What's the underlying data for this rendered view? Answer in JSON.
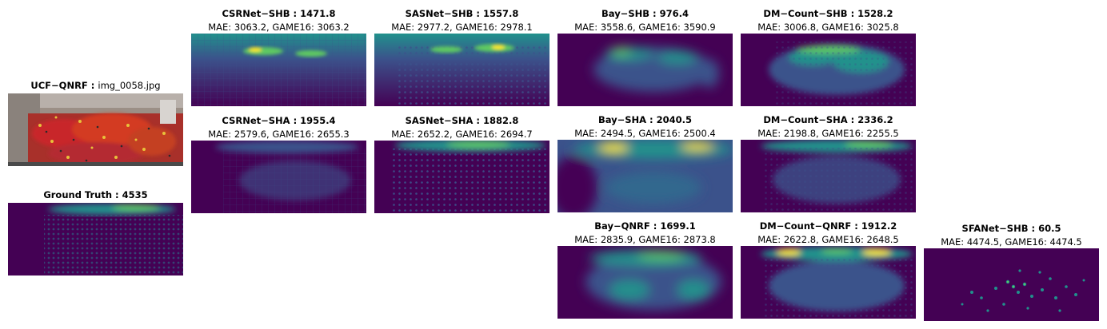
{
  "colors": {
    "viridis_dark": "#440154",
    "viridis_mid": "#3b528b",
    "viridis_teal": "#21918c",
    "viridis_green": "#5ec962",
    "viridis_yellow": "#fde725"
  },
  "source": {
    "dataset": "UCF−QNRF :",
    "filename": "img_0058.jpg"
  },
  "ground_truth": {
    "title": "Ground Truth : 4535"
  },
  "panels": {
    "csrnet_shb": {
      "title": "CSRNet−SHB : 1471.8",
      "metrics": "MAE: 3063.2, GAME16: 3063.2"
    },
    "csrnet_sha": {
      "title": "CSRNet−SHA : 1955.4",
      "metrics": "MAE: 2579.6, GAME16: 2655.3"
    },
    "sasnet_shb": {
      "title": "SASNet−SHB : 1557.8",
      "metrics": "MAE: 2977.2, GAME16: 2978.1"
    },
    "sasnet_sha": {
      "title": "SASNet−SHA : 1882.8",
      "metrics": "MAE: 2652.2, GAME16: 2694.7"
    },
    "bay_shb": {
      "title": "Bay−SHB : 976.4",
      "metrics": "MAE: 3558.6, GAME16: 3590.9"
    },
    "bay_sha": {
      "title": "Bay−SHA : 2040.5",
      "metrics": "MAE: 2494.5, GAME16: 2500.4"
    },
    "bay_qnrf": {
      "title": "Bay−QNRF : 1699.1",
      "metrics": "MAE: 2835.9, GAME16: 2873.8"
    },
    "dm_shb": {
      "title": "DM−Count−SHB : 1528.2",
      "metrics": "MAE: 3006.8, GAME16: 3025.8"
    },
    "dm_sha": {
      "title": "DM−Count−SHA : 2336.2",
      "metrics": "MAE: 2198.8, GAME16: 2255.5"
    },
    "dm_qnrf": {
      "title": "DM−Count−QNRF : 1912.2",
      "metrics": "MAE: 2622.8, GAME16: 2648.5"
    },
    "sfanet_shb": {
      "title": "SFANet−SHB : 60.5",
      "metrics": "MAE: 4474.5, GAME16: 4474.5"
    }
  }
}
